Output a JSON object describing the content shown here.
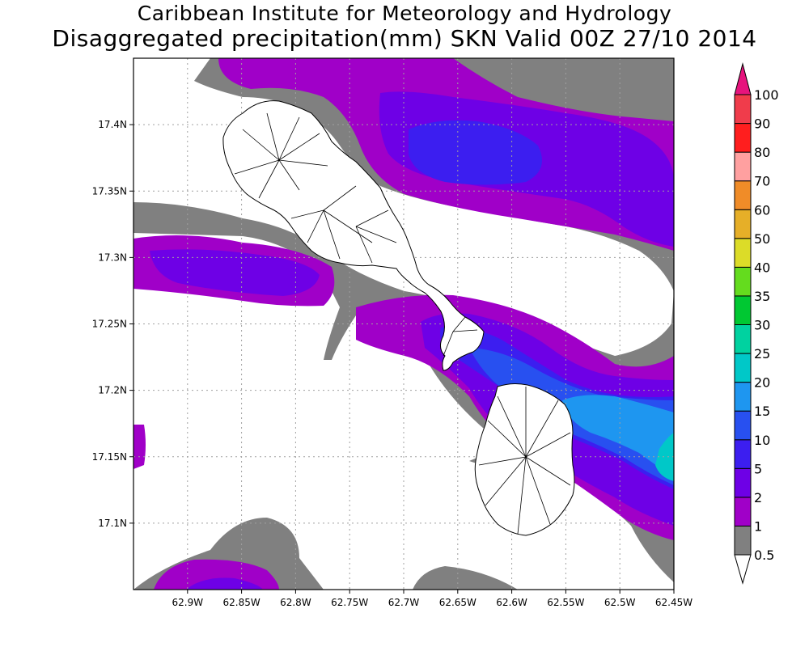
{
  "title": {
    "line1": "Caribbean Institute for Meteorology and Hydrology",
    "line2": "Disaggregated precipitation(mm) SKN Valid 00Z 27/10 2014"
  },
  "axes": {
    "lat_ticks": [
      "17.4N",
      "17.35N",
      "17.3N",
      "17.25N",
      "17.2N",
      "17.15N",
      "17.1N"
    ],
    "lat_values": [
      17.4,
      17.35,
      17.3,
      17.25,
      17.2,
      17.15,
      17.1
    ],
    "lon_ticks": [
      "62.9W",
      "62.85W",
      "62.8W",
      "62.75W",
      "62.7W",
      "62.65W",
      "62.6W",
      "62.55W",
      "62.5W",
      "62.45W"
    ],
    "lon_values": [
      -62.9,
      -62.85,
      -62.8,
      -62.75,
      -62.7,
      -62.65,
      -62.6,
      -62.55,
      -62.5,
      -62.45
    ],
    "lon_range": [
      -62.95,
      -62.45
    ],
    "lat_range": [
      17.05,
      17.45
    ],
    "grid": true
  },
  "colorbar": {
    "labels": [
      "0.5",
      "1",
      "2",
      "5",
      "10",
      "15",
      "20",
      "25",
      "30",
      "35",
      "40",
      "50",
      "60",
      "70",
      "80",
      "90",
      "100"
    ],
    "colors": [
      "#808080",
      "#a000c8",
      "#6e00e6",
      "#3c1ef0",
      "#2850f0",
      "#1e96f0",
      "#00c8c8",
      "#00d2a0",
      "#00c832",
      "#64dc1e",
      "#dcdc28",
      "#e6af28",
      "#f08c28",
      "#ffa0a0",
      "#ff1e1e",
      "#f03c4b",
      "#e6007d"
    ],
    "high_arrow_color": "#e6147d",
    "low_arrow_color": "#ffffff",
    "placement": "right"
  },
  "legend_colors": {
    "gray": "#808080",
    "purple": "#a000c8",
    "violet": "#6e00e6",
    "indigo": "#3c1ef0",
    "blue": "#2850f0",
    "sky": "#1e96f0",
    "teal": "#00c8c8"
  }
}
